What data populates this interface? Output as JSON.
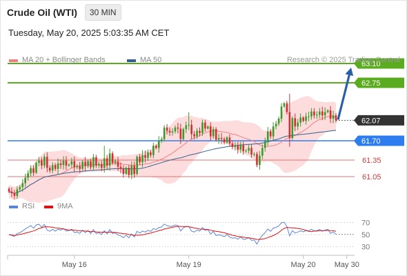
{
  "header": {
    "title": "Crude Oil (WTI)",
    "interval": "30 MIN",
    "timestamp": "Tuesday, May 20, 2025 5:03:35 AM CET"
  },
  "copyright": "Research © 2025 Trading Central",
  "colors": {
    "resistance": "#5aab1e",
    "support": "#2e7df0",
    "minor_level": "#e07070",
    "current_price": "#333333",
    "arrow": "#2b5fa3",
    "candle_up": "#3a9a2a",
    "candle_down": "#d03030",
    "bollinger_fill": "#fcd6d6",
    "ma20": "#f08080",
    "ma50": "#335f8e",
    "rsi": "#5b84d6",
    "rsi_ma": "#dd1111"
  },
  "chart_data": [
    {
      "type": "candlestick",
      "ylim": [
        60.6,
        63.35
      ],
      "legend": [
        {
          "name": "MA 20 + Bollinger Bands",
          "color": "#f08080"
        },
        {
          "name": "MA 50",
          "color": "#335f8e"
        }
      ],
      "levels": [
        {
          "label": "63.10",
          "value": 63.1,
          "kind": "resistance",
          "style": "tag"
        },
        {
          "label": "62.75",
          "value": 62.75,
          "kind": "resistance",
          "style": "tag"
        },
        {
          "label": "62.07",
          "value": 62.07,
          "kind": "current",
          "style": "tag"
        },
        {
          "label": "61.70",
          "value": 61.7,
          "kind": "support",
          "style": "tag"
        },
        {
          "label": "61.35",
          "value": 61.35,
          "kind": "minor",
          "style": "text"
        },
        {
          "label": "61.05",
          "value": 61.05,
          "kind": "minor",
          "style": "text"
        }
      ],
      "forecast": {
        "from": 62.07,
        "to": 63.1,
        "direction": "up"
      },
      "series": [
        {
          "name": "Price",
          "close": [
            60.78,
            60.75,
            60.7,
            60.82,
            60.86,
            60.93,
            61.03,
            61.11,
            61.2,
            61.12,
            61.3,
            61.34,
            61.25,
            61.41,
            61.21,
            61.16,
            61.26,
            61.19,
            61.29,
            61.26,
            61.34,
            61.25,
            61.27,
            61.33,
            61.22,
            61.24,
            61.19,
            61.32,
            61.24,
            61.33,
            61.22,
            61.4,
            61.25,
            61.28,
            61.21,
            61.38,
            61.25,
            61.47,
            61.3,
            61.33,
            61.23,
            61.19,
            61.1,
            61.21,
            61.08,
            61.25,
            61.1,
            61.41,
            61.31,
            61.44,
            61.39,
            61.49,
            61.44,
            61.61,
            61.57,
            61.7,
            61.73,
            61.94,
            61.88,
            61.85,
            61.87,
            61.94,
            61.92,
            61.73,
            61.91,
            61.98,
            61.99,
            61.82,
            61.78,
            61.88,
            61.84,
            62.03,
            61.92,
            61.96,
            61.78,
            61.91,
            61.72,
            61.75,
            61.73,
            61.67,
            61.76,
            61.65,
            61.59,
            61.61,
            61.54,
            61.62,
            61.51,
            61.52,
            61.57,
            61.45,
            61.46,
            61.26,
            61.43,
            61.57,
            61.69,
            61.87,
            61.78,
            61.96,
            62.01,
            62.1,
            62.32,
            62.38,
            62.22,
            61.75,
            62.11,
            61.96,
            62.03,
            62.12,
            62.06,
            62.14,
            62.14,
            62.23,
            62.16,
            62.17,
            62.23,
            62.16,
            62.22,
            62.25,
            62.1,
            62.16,
            62.07
          ]
        }
      ]
    },
    {
      "type": "line",
      "ylim": [
        18,
        82
      ],
      "ticks": [
        70,
        50,
        30
      ],
      "legend": [
        {
          "name": "RSI",
          "color": "#5b84d6"
        },
        {
          "name": "9MA",
          "color": "#dd1111"
        }
      ],
      "series": [
        {
          "name": "RSI"
        },
        {
          "name": "9MA"
        }
      ],
      "x_ticks": [
        {
          "label": "May 16",
          "index": 24
        },
        {
          "label": "May 19",
          "index": 66
        },
        {
          "label": "May 20",
          "index": 108
        },
        {
          "label": "May 30",
          "index": 124
        }
      ]
    }
  ]
}
